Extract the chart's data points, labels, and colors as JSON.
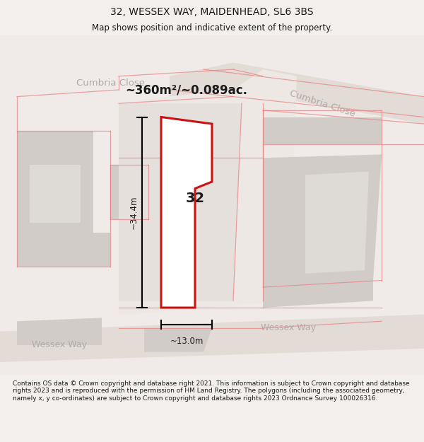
{
  "title": "32, WESSEX WAY, MAIDENHEAD, SL6 3BS",
  "subtitle": "Map shows position and indicative extent of the property.",
  "area_label": "~360m²/~0.089ac.",
  "number_label": "32",
  "dim_height": "~34.4m",
  "dim_width": "~13.0m",
  "footer": "Contains OS data © Crown copyright and database right 2021. This information is subject to Crown copyright and database rights 2023 and is reproduced with the permission of HM Land Registry. The polygons (including the associated geometry, namely x, y co-ordinates) are subject to Crown copyright and database rights 2023 Ordnance Survey 100026316.",
  "bg_color": "#f2efec",
  "map_bg": "#f2efec",
  "road_color": "#ddd8d4",
  "building_fill": "#d0cac6",
  "building_light": "#e0dbd7",
  "red_line_color": "#cc1111",
  "red_faint": "#e88080",
  "black_color": "#1a1a1a",
  "grey_text": "#b0aba8",
  "white_fill": "#ffffff",
  "title_fontsize": 10,
  "subtitle_fontsize": 8.5,
  "footer_fontsize": 6.5
}
